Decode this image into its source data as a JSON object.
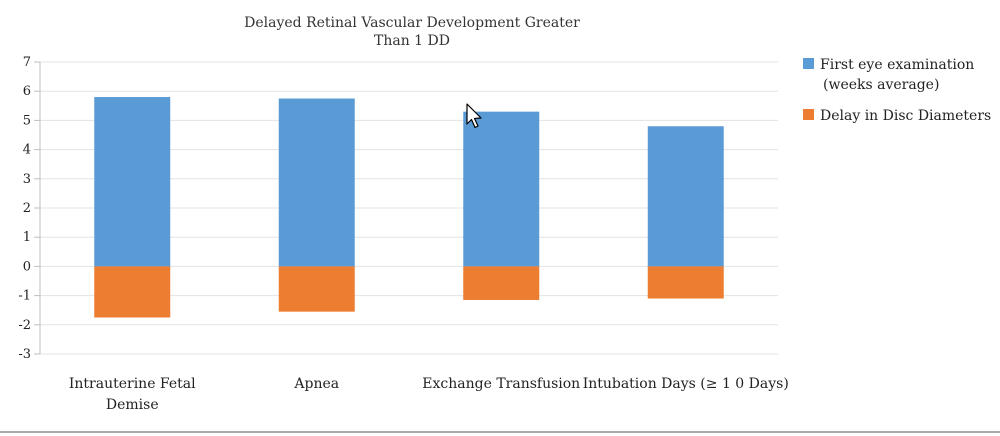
{
  "chart_data": {
    "type": "bar",
    "stacked": true,
    "title_lines": [
      "Delayed Retinal Vascular Development Greater",
      "Than 1  DD"
    ],
    "categories": [
      [
        "Intrauterine Fetal",
        "Demise"
      ],
      [
        "Apnea"
      ],
      [
        "Exchange Transfusion"
      ],
      [
        "Intubation Days (≥ 1 0 Days)"
      ]
    ],
    "series": [
      {
        "name_lines": [
          "First eye examination",
          "(weeks average)"
        ],
        "color": "#5B9BD5",
        "values": [
          5.8,
          5.75,
          5.3,
          4.8
        ]
      },
      {
        "name_lines": [
          "Delay in Disc Diameters"
        ],
        "color": "#ED7D31",
        "values": [
          -1.75,
          -1.55,
          -1.15,
          -1.1
        ]
      }
    ],
    "ylim": [
      -3,
      7
    ],
    "yticks": [
      "7",
      "6",
      "5",
      "4",
      "3",
      "2",
      "1",
      "0",
      "-1",
      "-2",
      "-3"
    ],
    "ytick_values": [
      7,
      6,
      5,
      4,
      3,
      2,
      1,
      0,
      -1,
      -2,
      -3
    ],
    "grid": true,
    "legend": "right"
  }
}
